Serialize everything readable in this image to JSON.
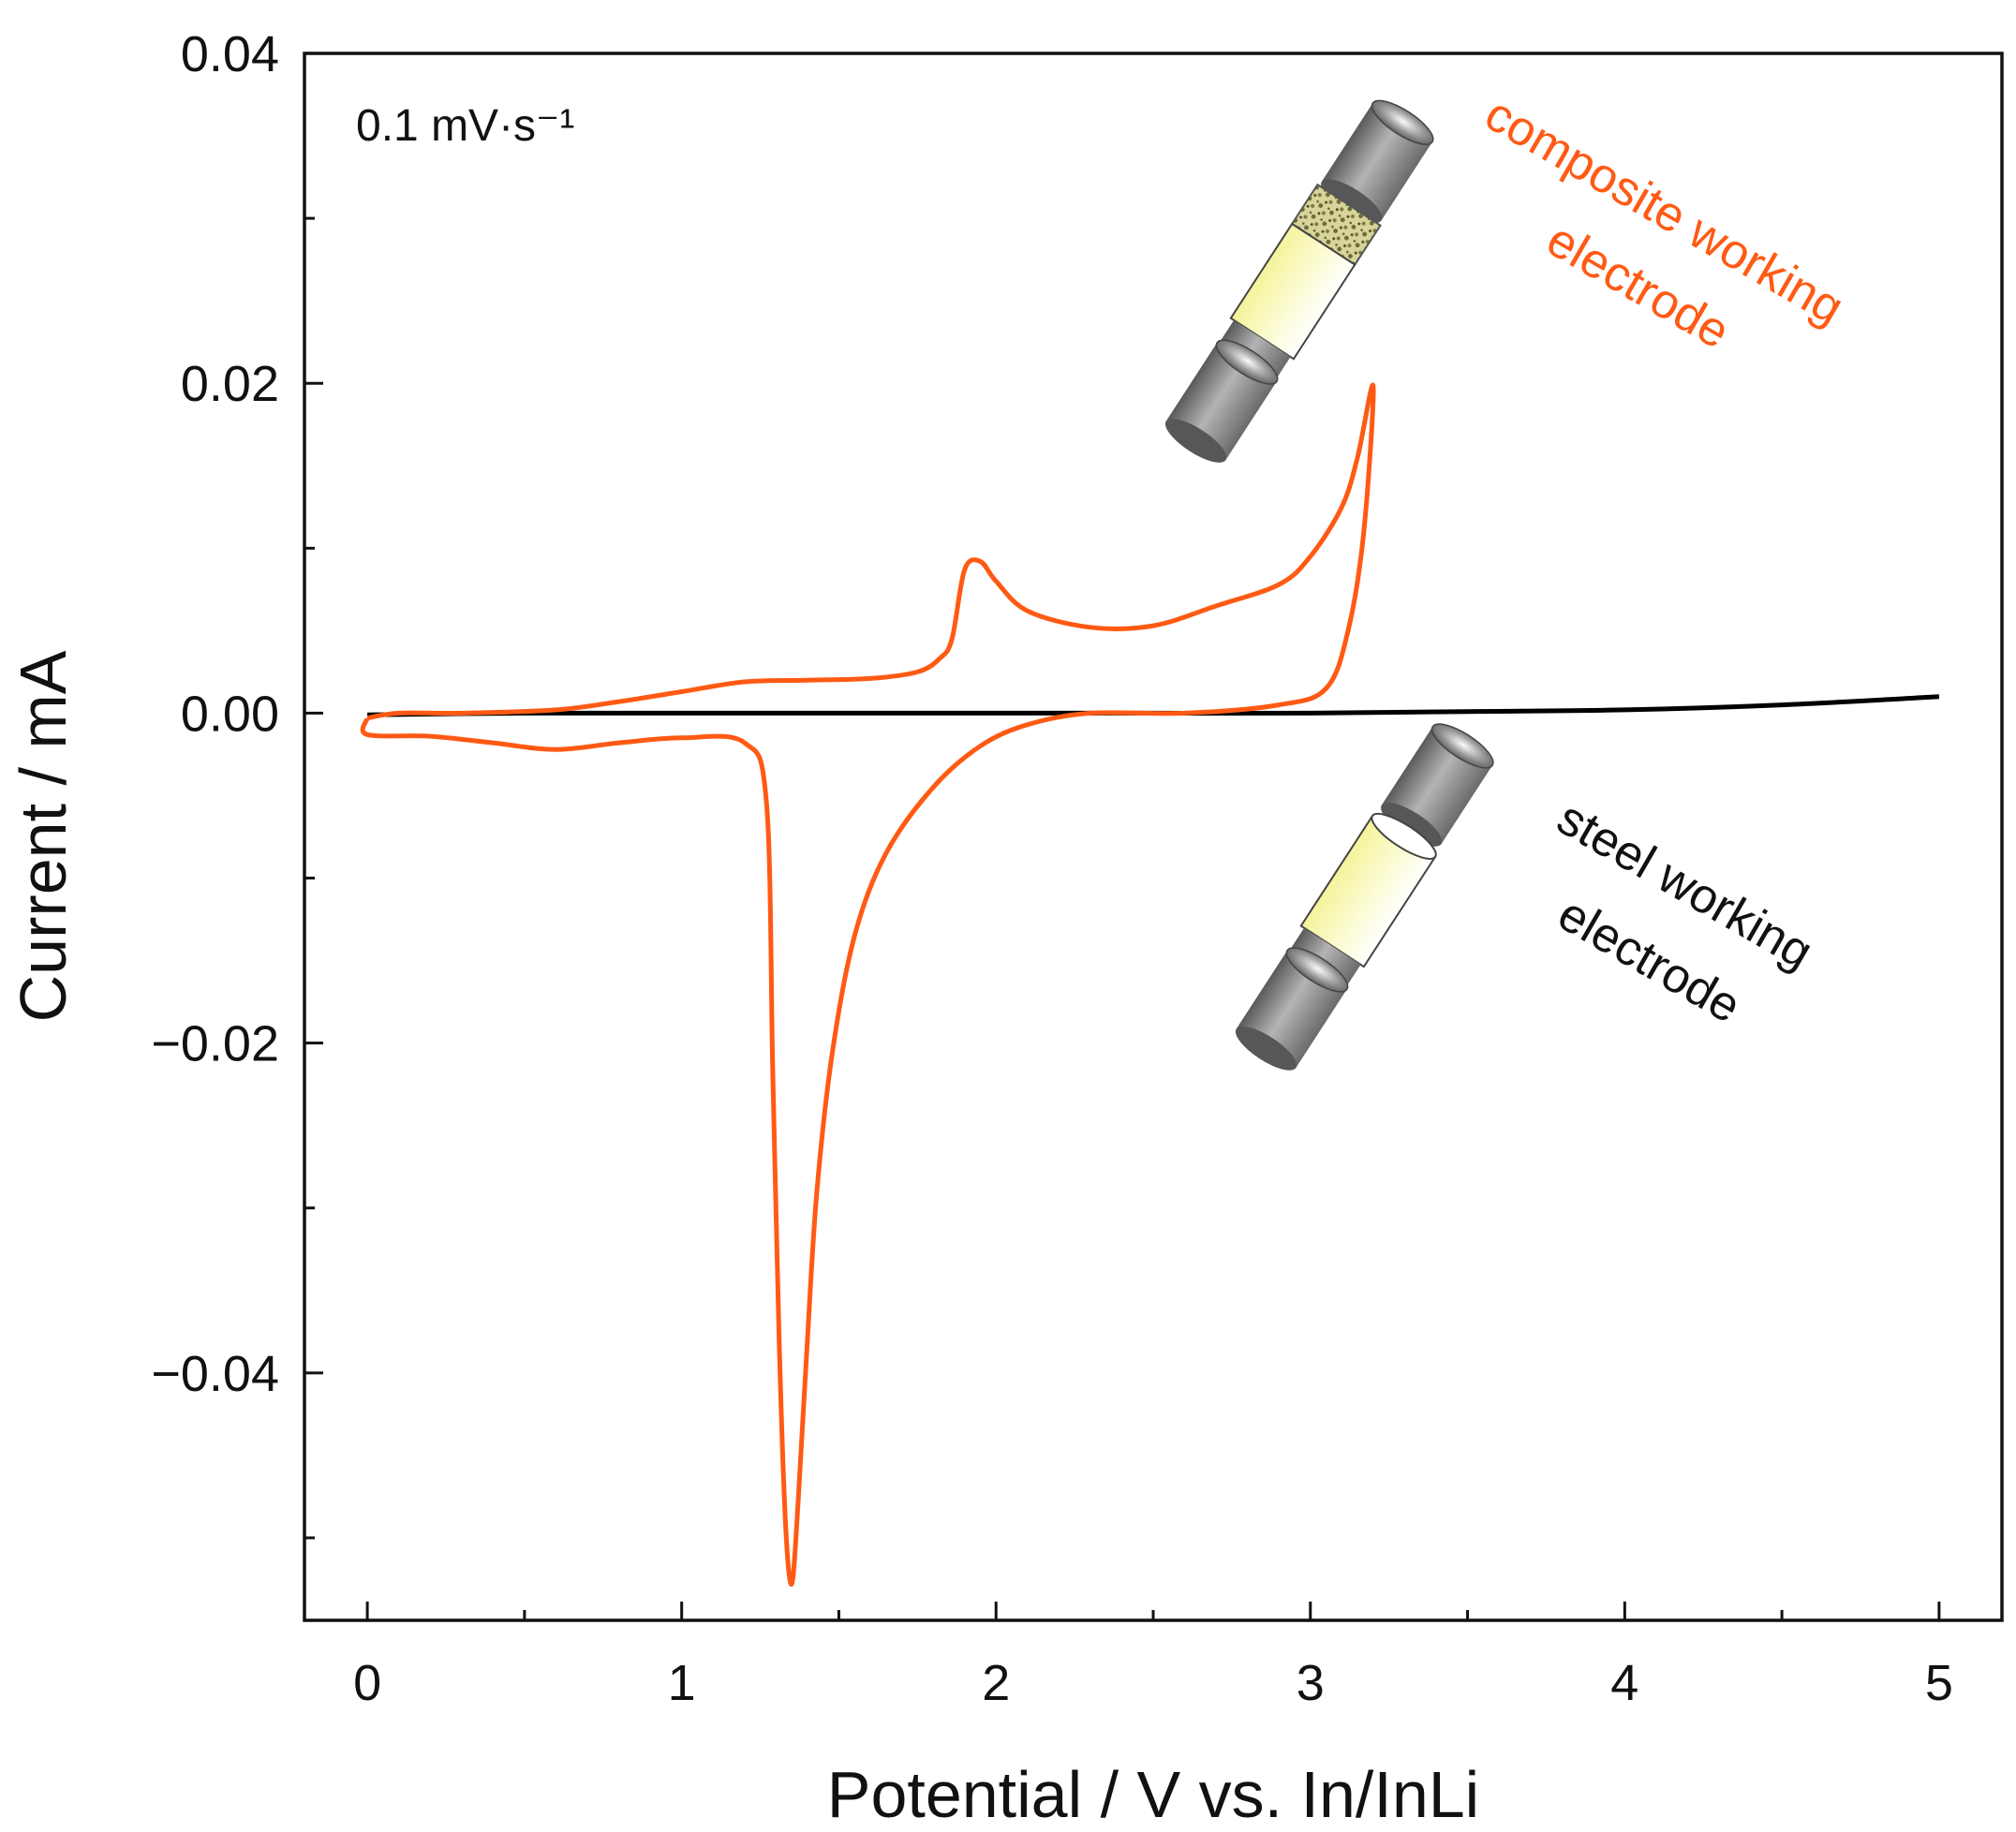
{
  "chart_data": {
    "type": "line",
    "title": "",
    "xlabel": "Potential / V vs. In/InLi",
    "ylabel": "Current / mA",
    "xlim": [
      -0.2,
      5.2
    ],
    "ylim": [
      -0.055,
      0.04
    ],
    "x_ticks": [
      0,
      1,
      2,
      3,
      4,
      5
    ],
    "x_tick_labels": [
      "0",
      "1",
      "2",
      "3",
      "4",
      "5"
    ],
    "y_ticks": [
      -0.04,
      -0.02,
      0.0,
      0.02,
      0.04
    ],
    "y_tick_labels": [
      "−0.04",
      "−0.02",
      "0.00",
      "0.02",
      "0.04"
    ],
    "scan_rate_label": "0.1 mV·s⁻¹",
    "colors": {
      "composite": "#ff5a14",
      "steel": "#000000",
      "axis": "#111111"
    },
    "series": [
      {
        "name": "composite working electrode",
        "color": "#ff5a14",
        "annotation": [
          "composite working",
          "electrode"
        ],
        "x": [
          0.0,
          0.1,
          0.3,
          0.6,
          0.8,
          1.0,
          1.2,
          1.4,
          1.6,
          1.75,
          1.82,
          1.86,
          1.9,
          1.95,
          2.0,
          2.1,
          2.3,
          2.5,
          2.7,
          2.9,
          3.0,
          3.1,
          3.15,
          3.2,
          3.17,
          3.12,
          3.05,
          2.9,
          2.6,
          2.3,
          2.1,
          1.95,
          1.8,
          1.65,
          1.55,
          1.48,
          1.43,
          1.4,
          1.37,
          1.35,
          1.33,
          1.31,
          1.29,
          1.27,
          1.2,
          1.0,
          0.8,
          0.6,
          0.4,
          0.2,
          0.0,
          0.0
        ],
        "y": [
          -0.0003,
          0.0,
          0.0,
          0.0002,
          0.0007,
          0.0013,
          0.0019,
          0.002,
          0.0021,
          0.0025,
          0.0033,
          0.0045,
          0.0087,
          0.0092,
          0.008,
          0.0062,
          0.0052,
          0.0053,
          0.0065,
          0.0078,
          0.0095,
          0.0125,
          0.0155,
          0.0198,
          0.011,
          0.005,
          0.0015,
          0.0005,
          0.0,
          0.0,
          -0.0007,
          -0.002,
          -0.0045,
          -0.0085,
          -0.0135,
          -0.0205,
          -0.029,
          -0.038,
          -0.048,
          -0.0528,
          -0.049,
          -0.038,
          -0.022,
          -0.0055,
          -0.0018,
          -0.0015,
          -0.0018,
          -0.0022,
          -0.0018,
          -0.0014,
          -0.0013,
          -0.0003
        ]
      },
      {
        "name": "steel working electrode",
        "color": "#000000",
        "annotation": [
          "steel working",
          "electrode"
        ],
        "x": [
          0.0,
          0.5,
          1.0,
          1.5,
          2.0,
          2.5,
          3.0,
          3.5,
          4.0,
          4.5,
          5.0
        ],
        "y": [
          -0.0001,
          0.0,
          0.0,
          0.0,
          0.0,
          0.0,
          0.0,
          0.0001,
          0.0002,
          0.0005,
          0.001
        ]
      }
    ]
  }
}
